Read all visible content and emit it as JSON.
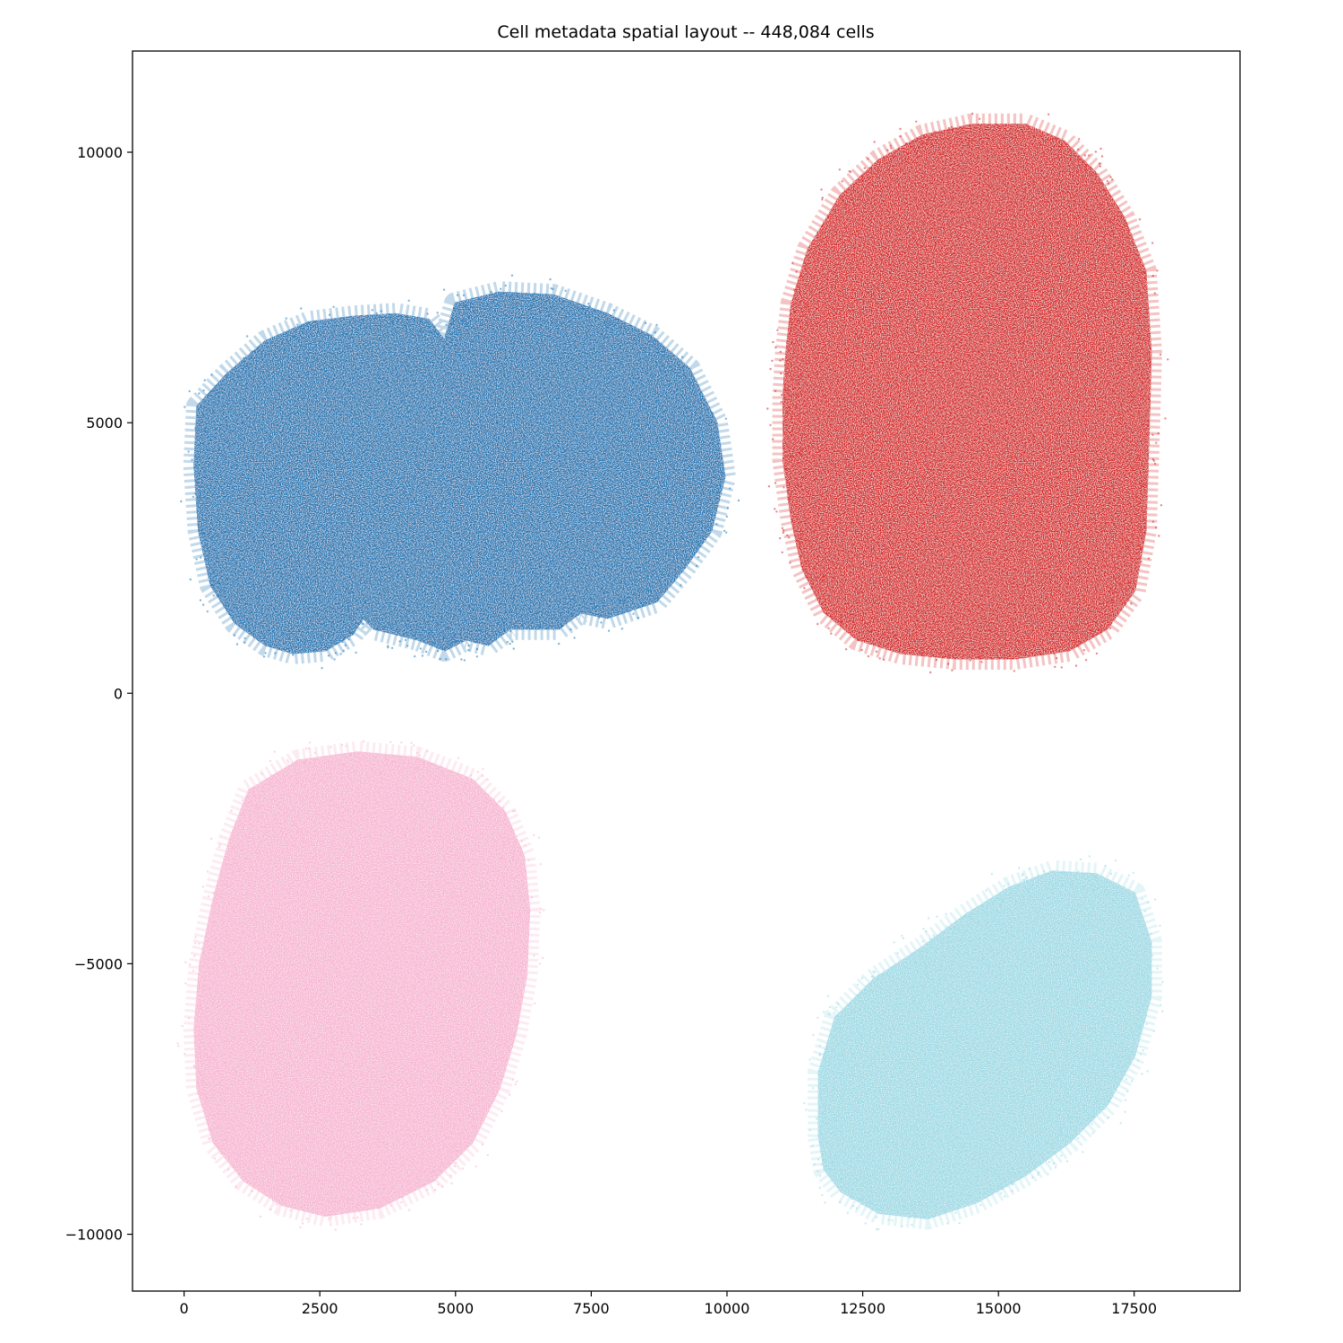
{
  "chart_data": {
    "type": "scatter",
    "title": "Cell metadata spatial layout -- 448,084 cells",
    "xlabel": "",
    "ylabel": "",
    "xlim": [
      -950,
      19450
    ],
    "ylim": [
      -11050,
      11870
    ],
    "x_ticks": [
      0,
      2500,
      5000,
      7500,
      10000,
      12500,
      15000,
      17500
    ],
    "x_tick_labels": [
      "0",
      "2500",
      "5000",
      "7500",
      "10000",
      "12500",
      "15000",
      "17500"
    ],
    "y_ticks": [
      10000,
      5000,
      0,
      -5000,
      -10000
    ],
    "y_tick_labels": [
      "10000",
      "5000",
      "0",
      "−5000",
      "−10000"
    ],
    "grid": false,
    "legend": "none",
    "series": [
      {
        "color": "#1f77b4",
        "outline": [
          [
            250,
            5300
          ],
          [
            800,
            5900
          ],
          [
            1500,
            6500
          ],
          [
            2300,
            6850
          ],
          [
            3100,
            6950
          ],
          [
            3900,
            7000
          ],
          [
            4500,
            6900
          ],
          [
            4800,
            6500
          ],
          [
            5000,
            7200
          ],
          [
            5800,
            7400
          ],
          [
            6800,
            7350
          ],
          [
            7800,
            7000
          ],
          [
            8600,
            6600
          ],
          [
            9300,
            6000
          ],
          [
            9800,
            5000
          ],
          [
            9950,
            4000
          ],
          [
            9700,
            3000
          ],
          [
            9200,
            2300
          ],
          [
            8700,
            1700
          ],
          [
            7800,
            1400
          ],
          [
            7300,
            1500
          ],
          [
            6900,
            1200
          ],
          [
            6000,
            1200
          ],
          [
            5600,
            900
          ],
          [
            5200,
            1000
          ],
          [
            4800,
            800
          ],
          [
            4300,
            1000
          ],
          [
            3500,
            1200
          ],
          [
            3300,
            1400
          ],
          [
            3100,
            1100
          ],
          [
            2600,
            800
          ],
          [
            2000,
            750
          ],
          [
            1500,
            900
          ],
          [
            950,
            1300
          ],
          [
            500,
            2000
          ],
          [
            280,
            3000
          ],
          [
            200,
            4200
          ]
        ]
      },
      {
        "color": "#d62728",
        "outline": [
          [
            11200,
            7200
          ],
          [
            11500,
            8200
          ],
          [
            12100,
            9200
          ],
          [
            12800,
            9850
          ],
          [
            13600,
            10300
          ],
          [
            14500,
            10500
          ],
          [
            15500,
            10500
          ],
          [
            16200,
            10200
          ],
          [
            16800,
            9600
          ],
          [
            17300,
            8800
          ],
          [
            17700,
            7800
          ],
          [
            17800,
            6300
          ],
          [
            17750,
            4500
          ],
          [
            17700,
            3000
          ],
          [
            17500,
            1900
          ],
          [
            17000,
            1200
          ],
          [
            16300,
            800
          ],
          [
            15300,
            650
          ],
          [
            14200,
            650
          ],
          [
            13200,
            750
          ],
          [
            12400,
            1000
          ],
          [
            11800,
            1500
          ],
          [
            11400,
            2300
          ],
          [
            11200,
            3200
          ],
          [
            11050,
            4300
          ],
          [
            11050,
            5500
          ],
          [
            11100,
            6300
          ]
        ]
      },
      {
        "color": "#f7b6d2",
        "outline": [
          [
            1200,
            -1800
          ],
          [
            2100,
            -1250
          ],
          [
            3200,
            -1100
          ],
          [
            4300,
            -1200
          ],
          [
            5300,
            -1600
          ],
          [
            5900,
            -2200
          ],
          [
            6250,
            -3000
          ],
          [
            6350,
            -4000
          ],
          [
            6300,
            -5200
          ],
          [
            6100,
            -6300
          ],
          [
            5800,
            -7300
          ],
          [
            5300,
            -8300
          ],
          [
            4600,
            -9000
          ],
          [
            3600,
            -9500
          ],
          [
            2600,
            -9650
          ],
          [
            1800,
            -9450
          ],
          [
            1100,
            -9000
          ],
          [
            550,
            -8300
          ],
          [
            250,
            -7300
          ],
          [
            200,
            -6200
          ],
          [
            300,
            -5000
          ],
          [
            550,
            -3800
          ],
          [
            850,
            -2700
          ]
        ]
      },
      {
        "color": "#9edae5",
        "outline": [
          [
            11700,
            -8200
          ],
          [
            11700,
            -7000
          ],
          [
            12000,
            -6000
          ],
          [
            12700,
            -5300
          ],
          [
            13600,
            -4700
          ],
          [
            14400,
            -4100
          ],
          [
            15200,
            -3600
          ],
          [
            16000,
            -3300
          ],
          [
            16800,
            -3350
          ],
          [
            17500,
            -3700
          ],
          [
            17800,
            -4600
          ],
          [
            17800,
            -5600
          ],
          [
            17500,
            -6700
          ],
          [
            17000,
            -7600
          ],
          [
            16300,
            -8300
          ],
          [
            15500,
            -8900
          ],
          [
            14600,
            -9400
          ],
          [
            13700,
            -9700
          ],
          [
            12800,
            -9600
          ],
          [
            12100,
            -9200
          ],
          [
            11800,
            -8800
          ]
        ]
      }
    ]
  }
}
